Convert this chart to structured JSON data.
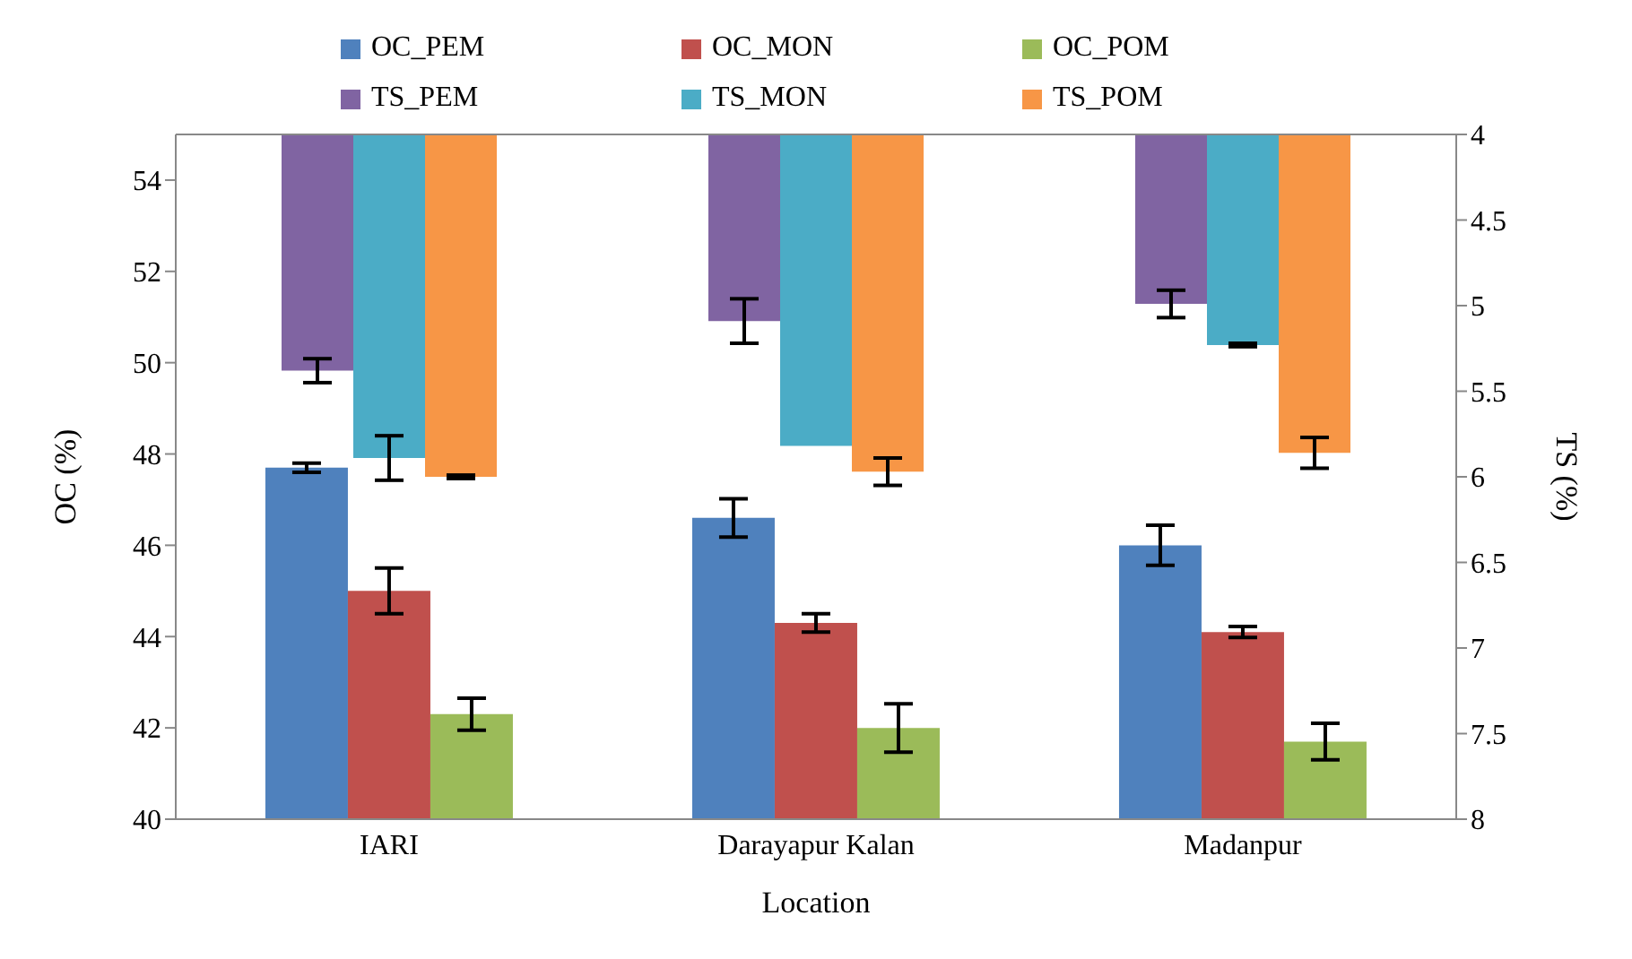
{
  "chart_data": {
    "type": "bar",
    "xlabel": "Location",
    "ylabel": "OC (%)",
    "y2label": "TS (%)",
    "categories": [
      "IARI",
      "Darayapur Kalan",
      "Madanpur"
    ],
    "series": [
      {
        "name": "OC_PEM",
        "color": "#4f81bd",
        "values": [
          47.7,
          46.6,
          46.0
        ],
        "errors": [
          0.1,
          0.42,
          0.44
        ]
      },
      {
        "name": "OC_MON",
        "color": "#c0504d",
        "values": [
          45.0,
          44.3,
          44.1
        ],
        "errors": [
          0.5,
          0.2,
          0.12
        ]
      },
      {
        "name": "OC_POM",
        "color": "#9bbb59",
        "values": [
          42.3,
          42.0,
          41.7
        ],
        "errors": [
          0.35,
          0.53,
          0.4
        ]
      },
      {
        "name": "TS_PEM",
        "color": "#8064a2",
        "axis": "y2",
        "values": [
          5.38,
          5.09,
          4.99
        ],
        "errors": [
          0.07,
          0.13,
          0.08
        ]
      },
      {
        "name": "TS_MON",
        "color": "#4bacc6",
        "axis": "y2",
        "values": [
          5.89,
          5.82,
          5.23
        ],
        "errors": [
          0.13,
          null,
          0.01
        ]
      },
      {
        "name": "TS_POM",
        "color": "#f79646",
        "axis": "y2",
        "values": [
          6.0,
          5.97,
          5.86
        ],
        "errors": [
          0.01,
          0.08,
          0.09
        ]
      }
    ],
    "ylim": [
      40,
      55
    ],
    "yticks": [
      40,
      42,
      44,
      46,
      48,
      50,
      52,
      54
    ],
    "y2lim": [
      8,
      4
    ],
    "y2ticks": [
      4,
      4.5,
      5,
      5.5,
      6,
      6.5,
      7,
      7.5,
      8
    ],
    "legend": "top",
    "grid": false
  }
}
